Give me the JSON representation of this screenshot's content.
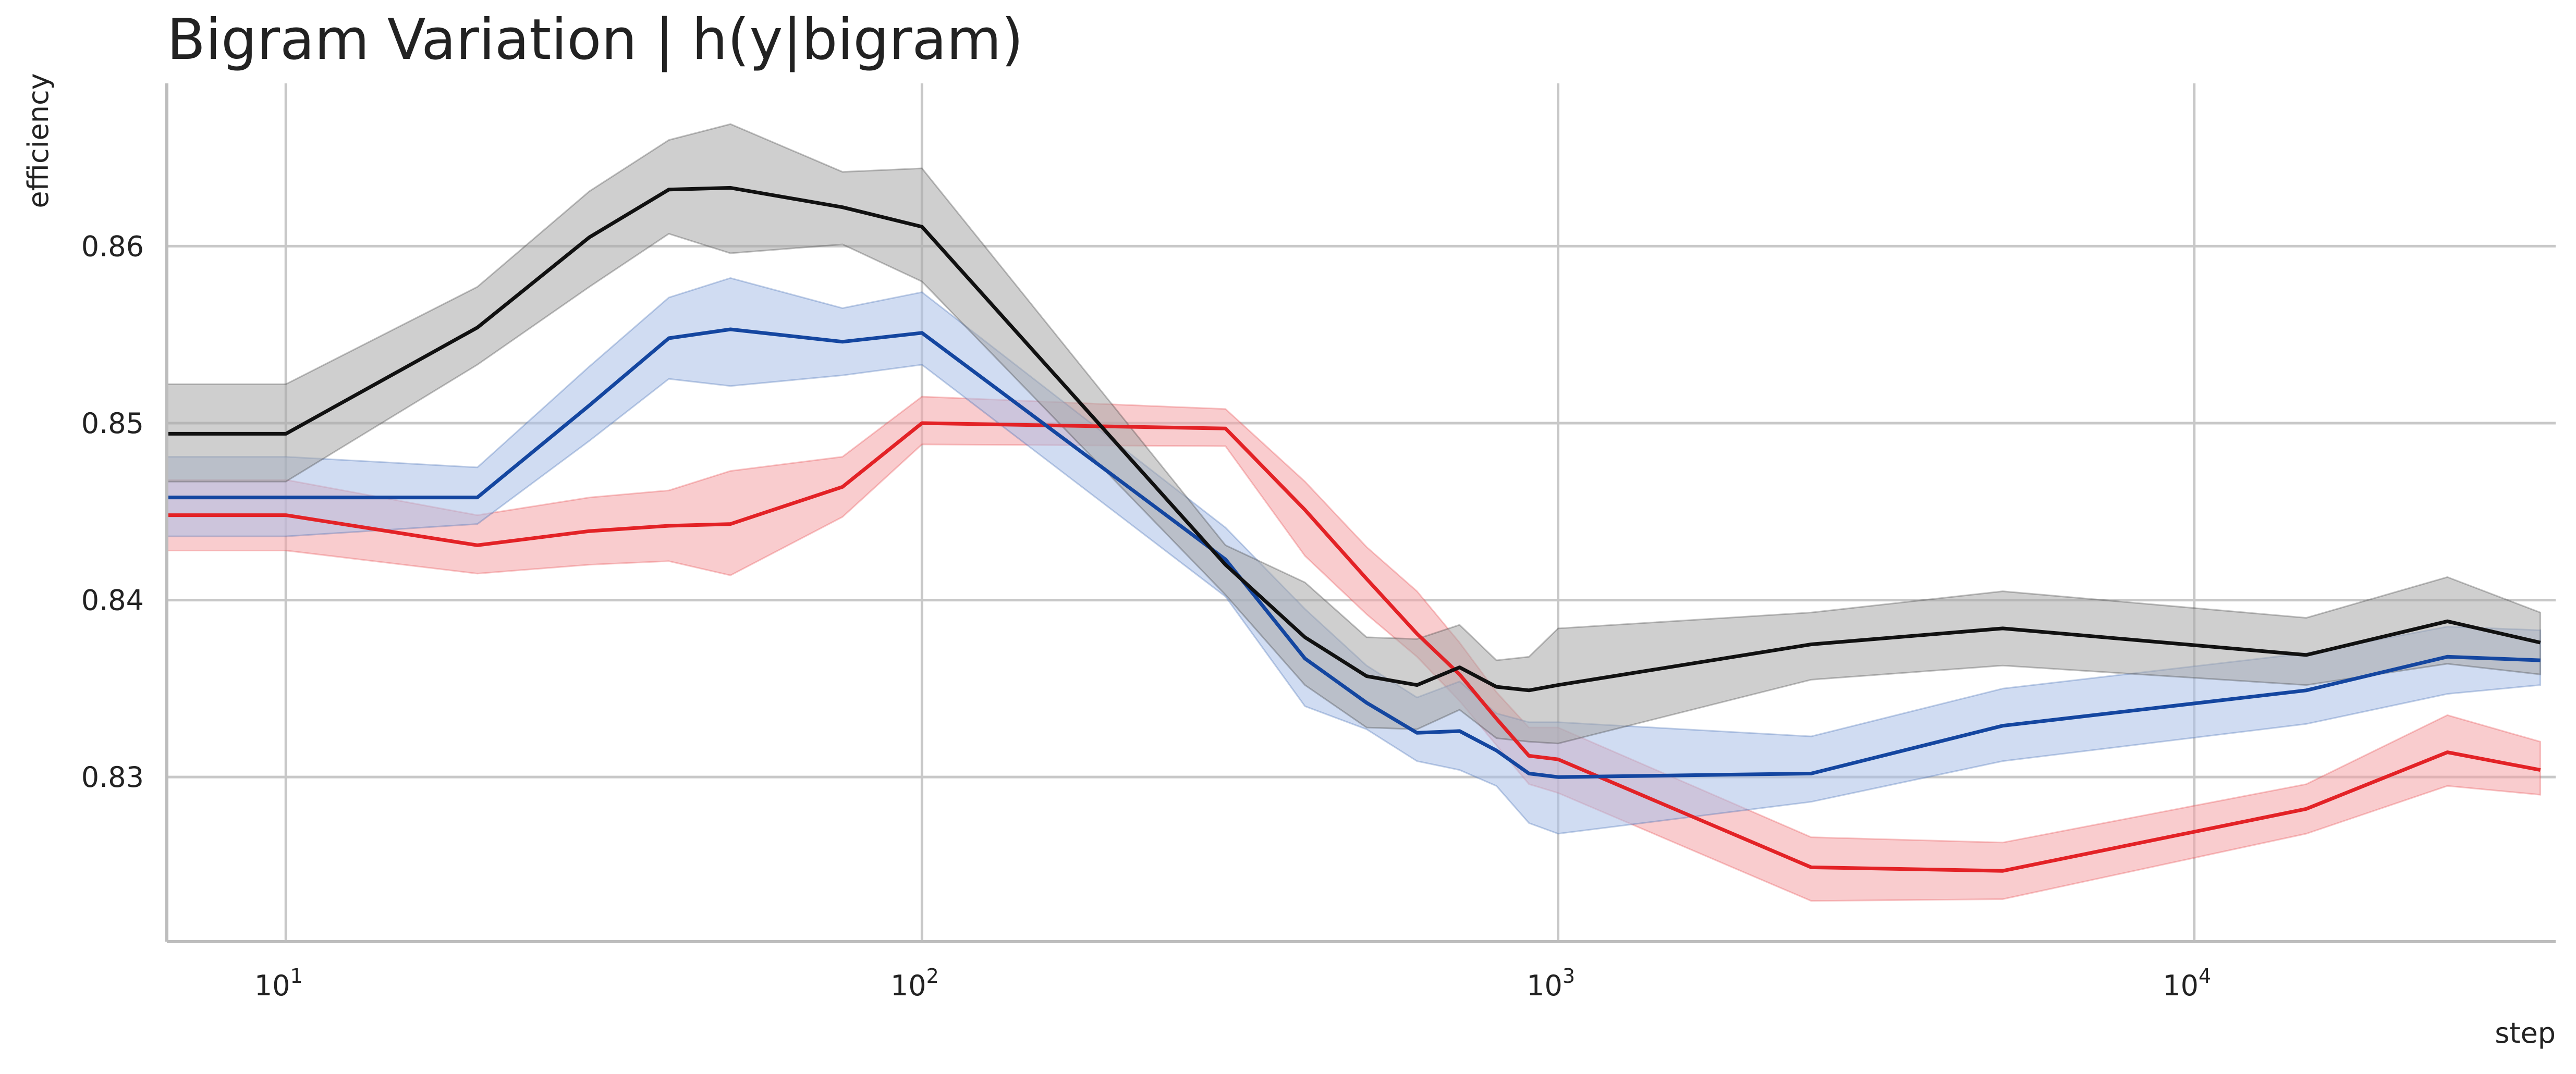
{
  "chart_data": {
    "type": "line",
    "title": "Bigram Variation | h(y|bigram)",
    "xlabel": "step",
    "ylabel": "efficiency",
    "xscale": "log",
    "xlim": [
      6.5,
      37000
    ],
    "ylim": [
      0.8207,
      0.8692
    ],
    "grid": true,
    "legend": "none",
    "x_ticks": [
      {
        "value": 10,
        "base": "10",
        "exp": "1"
      },
      {
        "value": 100,
        "base": "10",
        "exp": "2"
      },
      {
        "value": 1000,
        "base": "10",
        "exp": "3"
      },
      {
        "value": 10000,
        "base": "10",
        "exp": "4"
      }
    ],
    "y_ticks": [
      {
        "value": 0.83,
        "label": "0.83"
      },
      {
        "value": 0.84,
        "label": "0.84"
      },
      {
        "value": 0.85,
        "label": "0.85"
      },
      {
        "value": 0.86,
        "label": "0.86"
      }
    ],
    "series": [
      {
        "color": "#e32226",
        "band_color": "#f4a3a5",
        "x": [
          6.5,
          10,
          20,
          30,
          40,
          50,
          75,
          100,
          300,
          400,
          500,
          600,
          700,
          800,
          900,
          1000,
          2500,
          5000,
          15000,
          25000,
          35000
        ],
        "y": [
          0.8448,
          0.8448,
          0.8431,
          0.8439,
          0.8442,
          0.8443,
          0.8464,
          0.85,
          0.8497,
          0.8451,
          0.8412,
          0.8381,
          0.8358,
          0.8333,
          0.8312,
          0.831,
          0.8249,
          0.8247,
          0.8282,
          0.8314,
          0.8304
        ],
        "lower": [
          0.8428,
          0.8428,
          0.8415,
          0.842,
          0.8422,
          0.8414,
          0.8447,
          0.8488,
          0.8487,
          0.8425,
          0.8392,
          0.8368,
          0.8343,
          0.8318,
          0.8296,
          0.8291,
          0.823,
          0.8231,
          0.8268,
          0.8295,
          0.829
        ],
        "upper": [
          0.8468,
          0.8468,
          0.8448,
          0.8458,
          0.8462,
          0.8473,
          0.8481,
          0.8515,
          0.8508,
          0.8467,
          0.843,
          0.8405,
          0.8376,
          0.8348,
          0.8328,
          0.8328,
          0.8266,
          0.8263,
          0.8296,
          0.8335,
          0.832
        ]
      },
      {
        "color": "#1446a0",
        "band_color": "#a9c0e8",
        "x": [
          6.5,
          10,
          20,
          30,
          40,
          50,
          75,
          100,
          300,
          400,
          500,
          600,
          700,
          800,
          900,
          1000,
          2500,
          5000,
          15000,
          25000,
          35000
        ],
        "y": [
          0.8458,
          0.8458,
          0.8458,
          0.851,
          0.8548,
          0.8553,
          0.8546,
          0.8551,
          0.8423,
          0.8367,
          0.8342,
          0.8325,
          0.8326,
          0.8315,
          0.8302,
          0.83,
          0.8302,
          0.8329,
          0.8349,
          0.8368,
          0.8366
        ],
        "lower": [
          0.8436,
          0.8436,
          0.8443,
          0.849,
          0.8525,
          0.8521,
          0.8527,
          0.8533,
          0.8402,
          0.834,
          0.8327,
          0.8309,
          0.8304,
          0.8295,
          0.8274,
          0.8268,
          0.8286,
          0.8309,
          0.833,
          0.8347,
          0.8352
        ],
        "upper": [
          0.8481,
          0.8481,
          0.8475,
          0.8532,
          0.8571,
          0.8582,
          0.8565,
          0.8574,
          0.8441,
          0.8395,
          0.8363,
          0.8345,
          0.8354,
          0.8336,
          0.8331,
          0.8331,
          0.8323,
          0.835,
          0.837,
          0.8385,
          0.8383
        ]
      },
      {
        "color": "#111111",
        "band_color": "#a8a8a8",
        "x": [
          6.5,
          10,
          20,
          30,
          40,
          50,
          75,
          100,
          300,
          400,
          500,
          600,
          700,
          800,
          900,
          1000,
          2500,
          5000,
          15000,
          25000,
          35000
        ],
        "y": [
          0.8494,
          0.8494,
          0.8554,
          0.8605,
          0.8632,
          0.8633,
          0.8622,
          0.8611,
          0.842,
          0.8379,
          0.8357,
          0.8352,
          0.8362,
          0.8351,
          0.8349,
          0.8352,
          0.8375,
          0.8384,
          0.8369,
          0.8388,
          0.8376
        ],
        "lower": [
          0.8467,
          0.8467,
          0.8533,
          0.8577,
          0.8607,
          0.8596,
          0.8601,
          0.858,
          0.8403,
          0.8352,
          0.8328,
          0.8327,
          0.8338,
          0.8322,
          0.832,
          0.8319,
          0.8355,
          0.8363,
          0.8352,
          0.8364,
          0.8358
        ],
        "upper": [
          0.8522,
          0.8522,
          0.8577,
          0.8631,
          0.866,
          0.8669,
          0.8642,
          0.8644,
          0.8431,
          0.841,
          0.8379,
          0.8378,
          0.8386,
          0.8366,
          0.8368,
          0.8384,
          0.8393,
          0.8405,
          0.839,
          0.8413,
          0.8393
        ]
      }
    ]
  }
}
